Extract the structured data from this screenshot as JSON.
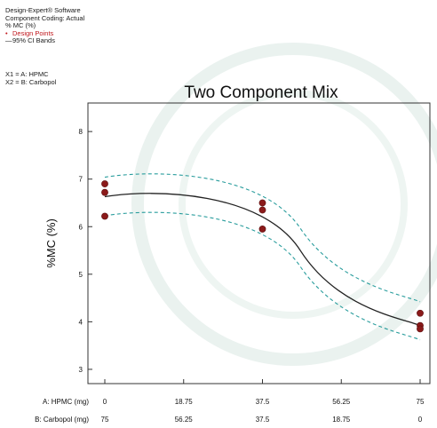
{
  "header": {
    "software": "Design-Expert® Software",
    "coding": "Component Coding: Actual",
    "response": "% MC (%)",
    "legend_points": "Design Points",
    "legend_bands": "95% CI Bands",
    "legend_point_mark": "•",
    "legend_band_mark": "—"
  },
  "factors": {
    "x1": "X1 = A: HPMC",
    "x2": "X2 = B: Carbopol"
  },
  "chart_data": {
    "type": "scatter",
    "title": "Two Component Mix",
    "ylabel": "%MC (%)",
    "ylim": [
      2.7,
      8.6
    ],
    "yticks": [
      "3",
      "4",
      "5",
      "6",
      "7",
      "8"
    ],
    "x_axes": [
      {
        "label": "A: HPMC (mg)",
        "ticks": [
          "0",
          "18.75",
          "37.5",
          "56.25",
          "75"
        ]
      },
      {
        "label": "B: Carbopol (mg)",
        "ticks": [
          "75",
          "56.25",
          "37.5",
          "18.75",
          "0"
        ]
      }
    ],
    "x": [
      0,
      75
    ],
    "series": [
      {
        "name": "Design Points",
        "points": [
          [
            0,
            6.9
          ],
          [
            0,
            6.72
          ],
          [
            0,
            6.22
          ],
          [
            37.5,
            6.5
          ],
          [
            37.5,
            6.35
          ],
          [
            37.5,
            5.95
          ],
          [
            75,
            4.18
          ],
          [
            75,
            3.92
          ],
          [
            75,
            3.85
          ]
        ]
      },
      {
        "name": "Prediction",
        "curve": [
          [
            0,
            6.63
          ],
          [
            75,
            3.92
          ]
        ]
      },
      {
        "name": "95% CI Upper",
        "curve": [
          [
            0,
            7.04
          ],
          [
            75,
            4.42
          ]
        ]
      },
      {
        "name": "95% CI Lower",
        "curve": [
          [
            0,
            6.23
          ],
          [
            75,
            3.62
          ]
        ]
      }
    ],
    "colors": {
      "points": "#8b1a1a",
      "prediction": "#222222",
      "ci": "#2a9d9d",
      "axis": "#333333"
    }
  }
}
